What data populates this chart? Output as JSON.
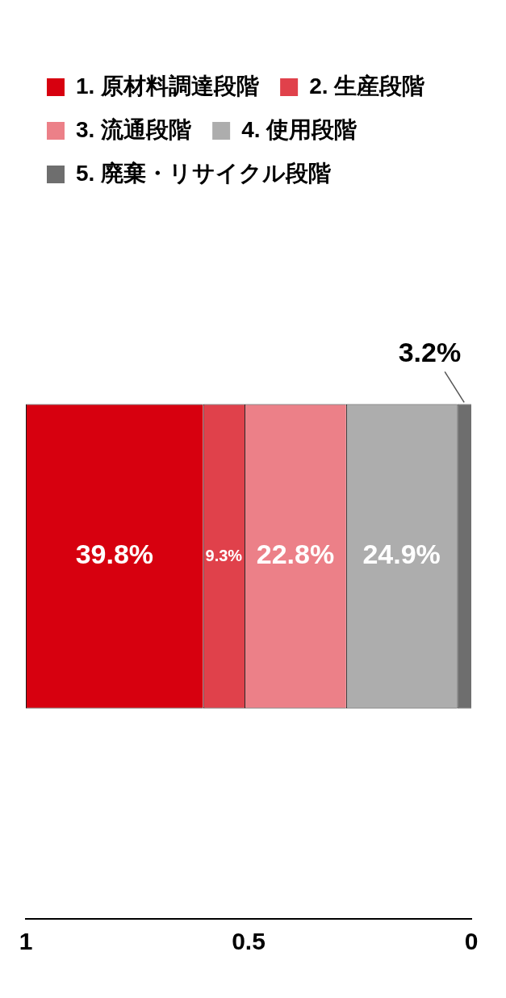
{
  "chart_data": {
    "type": "bar",
    "orientation": "horizontal",
    "categories": [
      null
    ],
    "stacked": true,
    "xlim": [
      1,
      0
    ],
    "xticks": [
      0,
      0.5,
      1
    ],
    "tick_labels": "x",
    "grid": false,
    "legend": "top",
    "series": [
      {
        "name": "5. 廃棄・リサイクル段階",
        "color": "#6e6e6e",
        "values": [
          0.032
        ],
        "value_labels": [
          "3.2%"
        ]
      },
      {
        "name": "4. 使用段階",
        "color": "#adadad",
        "values": [
          0.249
        ],
        "value_labels": [
          "24.9%"
        ]
      },
      {
        "name": "3. 流通段階",
        "color": "#ec8088",
        "values": [
          0.228
        ],
        "value_labels": [
          "22.8%"
        ]
      },
      {
        "name": "2. 生産段階",
        "color": "#e0414b",
        "values": [
          0.093
        ],
        "value_labels": [
          "9.3%"
        ]
      },
      {
        "name": "1. 原材料調達段階",
        "color": "#d7000f",
        "values": [
          0.398
        ],
        "value_labels": [
          "39.8%"
        ]
      }
    ]
  }
}
